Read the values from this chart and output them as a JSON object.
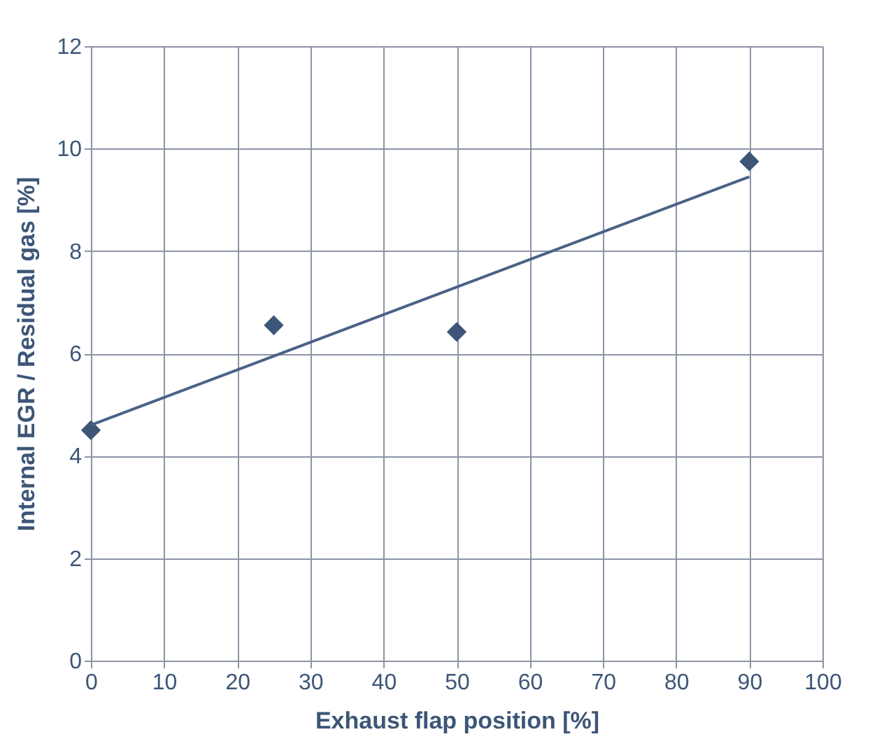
{
  "chart_data": {
    "type": "scatter",
    "xlabel": "Exhaust flap position [%]",
    "ylabel": "Internal EGR / Residual gas [%]",
    "xlim": [
      0,
      100
    ],
    "xticks": [
      0,
      10,
      20,
      30,
      40,
      50,
      60,
      70,
      80,
      90,
      100
    ],
    "ylim": [
      0,
      12
    ],
    "yticks": [
      0,
      2,
      4,
      6,
      8,
      10,
      12
    ],
    "grid": true,
    "series": [
      {
        "type": "scatter",
        "marker": "diamond",
        "color": "#3d5677",
        "x": [
          0,
          25,
          50,
          90
        ],
        "values": [
          4.5,
          6.55,
          6.42,
          9.75
        ]
      },
      {
        "type": "line",
        "color": "#4a6286",
        "x": [
          0,
          90
        ],
        "values": [
          4.6,
          9.45
        ],
        "line_style": "solid"
      }
    ]
  }
}
